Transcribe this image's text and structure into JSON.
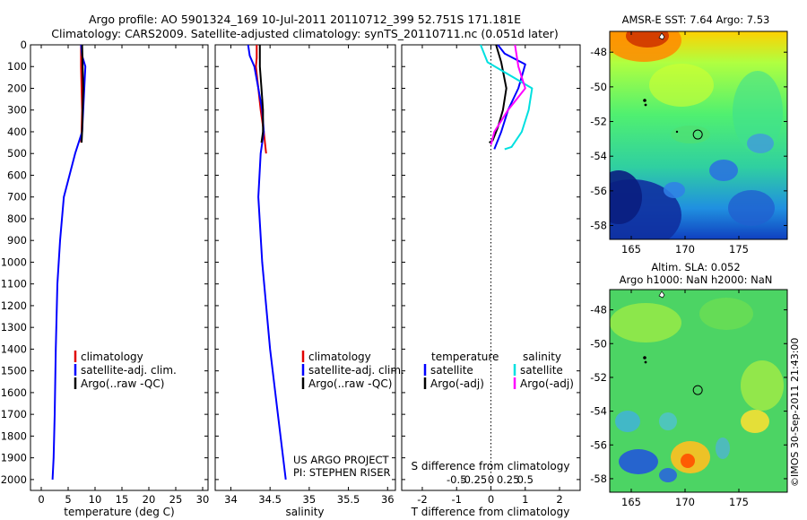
{
  "header": {
    "line1": "Argo profile: AO 5901324_169 10-Jul-2011 20110712_399 52.751S 171.181E",
    "line2": "Climatology: CARS2009. Satellite-adjusted climatology: synTS_20110711.nc (0.051d later)"
  },
  "colors": {
    "climatology": "#e00000",
    "satellite": "#0000ff",
    "argo": "#000000",
    "salinity_satellite": "#00e0e0",
    "salinity_argo": "#ff00ff"
  },
  "chart_data": [
    {
      "type": "line",
      "panel": "temperature",
      "xlabel": "temperature (deg C)",
      "xlim": [
        -2,
        31
      ],
      "xticks": [
        0,
        5,
        10,
        15,
        20,
        25,
        30
      ],
      "ylim": [
        0,
        2050
      ],
      "yticks": [
        0,
        100,
        200,
        300,
        400,
        500,
        600,
        700,
        800,
        900,
        1000,
        1100,
        1200,
        1300,
        1400,
        1500,
        1600,
        1700,
        1800,
        1900,
        2000
      ],
      "y_reversed": true,
      "legend": [
        "climatology",
        "satellite-adj. clim.",
        "Argo(..raw -QC)"
      ],
      "legend_position": "lower-right",
      "series": [
        {
          "name": "climatology",
          "x": [
            7.4,
            7.4,
            7.5,
            7.6,
            7.5,
            7.4
          ],
          "y": [
            0,
            100,
            200,
            300,
            400,
            450
          ]
        },
        {
          "name": "satellite-adj. clim.",
          "x": [
            7.4,
            7.6,
            8.2,
            8.0,
            7.8,
            7.6,
            6.3,
            4.2,
            3.5,
            3.0,
            2.7,
            2.5,
            2.3,
            2.1
          ],
          "y": [
            0,
            50,
            100,
            200,
            300,
            400,
            500,
            700,
            900,
            1100,
            1400,
            1700,
            1900,
            2000
          ]
        },
        {
          "name": "Argo(..raw -QC)",
          "x": [
            7.6,
            7.7,
            7.8,
            7.7,
            7.6,
            7.5
          ],
          "y": [
            0,
            100,
            200,
            300,
            400,
            450
          ]
        }
      ]
    },
    {
      "type": "line",
      "panel": "salinity",
      "xlabel": "salinity",
      "xlim": [
        33.8,
        36.1
      ],
      "xticks": [
        34,
        34.5,
        35,
        35.5,
        36
      ],
      "ylim": [
        0,
        2050
      ],
      "y_reversed": true,
      "legend": [
        "climatology",
        "satellite-adj. clim.",
        "Argo(..raw -QC)"
      ],
      "legend_position": "lower-right",
      "annotation": [
        "US ARGO PROJECT",
        "PI: STEPHEN RISER"
      ],
      "series": [
        {
          "name": "climatology",
          "x": [
            34.33,
            34.33,
            34.32,
            34.35,
            34.38,
            34.42,
            34.45
          ],
          "y": [
            0,
            60,
            100,
            200,
            300,
            400,
            500
          ]
        },
        {
          "name": "satellite-adj. clim.",
          "x": [
            34.22,
            34.24,
            34.3,
            34.35,
            34.4,
            34.42,
            34.38,
            34.35,
            34.4,
            34.5,
            34.6,
            34.7
          ],
          "y": [
            0,
            50,
            100,
            200,
            300,
            400,
            500,
            700,
            1000,
            1400,
            1700,
            2000
          ]
        },
        {
          "name": "Argo(..raw -QC)",
          "x": [
            34.37,
            34.37,
            34.39,
            34.41,
            34.41,
            34.39
          ],
          "y": [
            0,
            100,
            200,
            300,
            400,
            450
          ]
        }
      ]
    },
    {
      "type": "line",
      "panel": "difference",
      "xlabel": "T difference from climatology",
      "xlabel2": "S difference from climatology",
      "xlim": [
        -2.6,
        2.6
      ],
      "xticks": [
        -2,
        -1,
        0,
        1,
        2
      ],
      "xticks2": [
        -0.5,
        -0.25,
        0,
        0.25,
        0.5
      ],
      "xticks2_labels": [
        "-0.5",
        "-0.25",
        "0",
        "0.25",
        "0.5"
      ],
      "ylim": [
        0,
        2050
      ],
      "y_reversed": true,
      "zero_line": true,
      "legend_titles": [
        "temperature",
        "salinity"
      ],
      "legend": [
        "satellite",
        "Argo(-adj)",
        "satellite",
        "Argo(-adj)"
      ],
      "legend_position": "lower-center",
      "series": [
        {
          "name": "satellite",
          "group": "temperature",
          "x": [
            0.2,
            0.4,
            1.0,
            0.8,
            0.5,
            0.3,
            0.1
          ],
          "y": [
            0,
            40,
            90,
            200,
            300,
            400,
            480
          ]
        },
        {
          "name": "Argo(-adj)",
          "group": "temperature",
          "x": [
            0.15,
            0.3,
            0.45,
            0.35,
            0.2,
            0.05,
            -0.05
          ],
          "y": [
            0,
            80,
            200,
            300,
            380,
            440,
            450
          ]
        },
        {
          "name": "satellite",
          "group": "salinity",
          "x": [
            -0.15,
            -0.05,
            0.6,
            0.55,
            0.45,
            0.3,
            0.2
          ],
          "y": [
            0,
            80,
            200,
            300,
            400,
            470,
            480
          ]
        },
        {
          "name": "Argo(-adj)",
          "group": "salinity",
          "x": [
            0.35,
            0.4,
            0.5,
            0.25,
            0.05,
            0.0
          ],
          "y": [
            0,
            100,
            200,
            300,
            400,
            460
          ]
        }
      ]
    },
    {
      "type": "heatmap",
      "panel": "sst-map",
      "title": "AMSR-E SST: 7.64  Argo: 7.53",
      "xlim": [
        163,
        179.5
      ],
      "ylim": [
        -58.8,
        -46.8
      ],
      "xticks": [
        165,
        170,
        175
      ],
      "yticks": [
        -48,
        -50,
        -52,
        -54,
        -56,
        -58
      ],
      "marker": {
        "lon": 171.181,
        "lat": -52.751
      }
    },
    {
      "type": "heatmap",
      "panel": "sla-map",
      "title_line1": "Altim. SLA: 0.052",
      "title_line2": "Argo h1000: NaN h2000: NaN",
      "xlim": [
        163,
        179.5
      ],
      "ylim": [
        -58.8,
        -46.8
      ],
      "xticks": [
        165,
        170,
        175
      ],
      "yticks": [
        -48,
        -50,
        -52,
        -54,
        -56,
        -58
      ],
      "marker": {
        "lon": 171.181,
        "lat": -52.751
      },
      "side_text": "©IMOS 30-Sep-2011 21:43:00"
    }
  ]
}
